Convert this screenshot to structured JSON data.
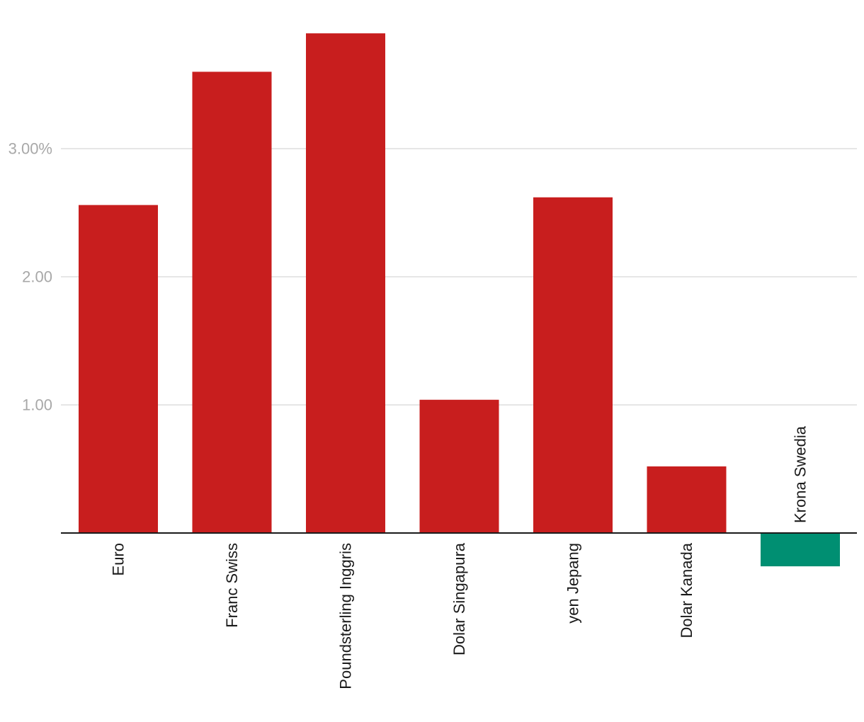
{
  "chart_data": {
    "type": "bar",
    "title": "",
    "xlabel": "",
    "ylabel": "",
    "categories": [
      "Euro",
      "Franc Swiss",
      "Poundsterling Inggris",
      "Dolar Singapura",
      "yen Jepang",
      "Dolar Kanada",
      "Krona Swedia"
    ],
    "values": [
      2.56,
      3.6,
      3.9,
      1.04,
      2.62,
      0.52,
      -0.26
    ],
    "ylim": [
      -0.26,
      3.9
    ],
    "y_ticks": [
      {
        "value": 1,
        "label": "1.00"
      },
      {
        "value": 2,
        "label": "2.00"
      },
      {
        "value": 3,
        "label": "3.00%"
      }
    ],
    "grid": true,
    "legend": "none",
    "colors": {
      "positive": "#c81e1e",
      "negative": "#008f72",
      "grid": "#dedede",
      "axis": "#1a1a1a",
      "tick_text": "#a8a8a8",
      "label_text": "#1a1a1a"
    }
  }
}
